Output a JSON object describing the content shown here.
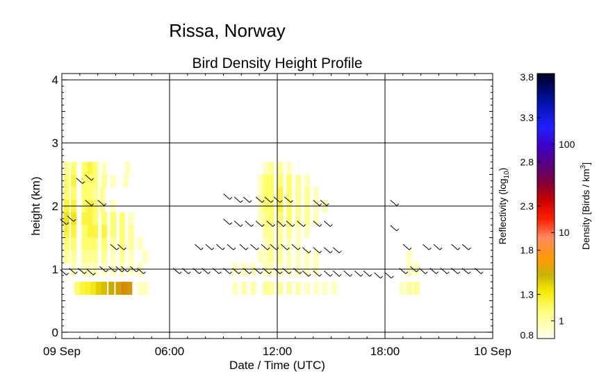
{
  "suptitle": "Rissa, Norway",
  "chart_data": {
    "type": "heatmap",
    "title": "Bird Density Height Profile",
    "xlabel": "Date / Time (UTC)",
    "ylabel": "height (km)",
    "xlim": [
      0,
      24
    ],
    "ylim": [
      -0.1,
      4.1
    ],
    "x_ticks": [
      {
        "value": 0,
        "label": "09 Sep"
      },
      {
        "value": 6,
        "label": "06:00"
      },
      {
        "value": 12,
        "label": "12:00"
      },
      {
        "value": 18,
        "label": "18:00"
      },
      {
        "value": 24,
        "label": "10 Sep"
      }
    ],
    "y_ticks": [
      {
        "value": 0,
        "label": "0"
      },
      {
        "value": 1,
        "label": "1"
      },
      {
        "value": 2,
        "label": "2"
      },
      {
        "value": 3,
        "label": "3"
      },
      {
        "value": 4,
        "label": "4"
      }
    ],
    "grid": true,
    "cells": [
      [
        0.1,
        2.5,
        1.2
      ],
      [
        0.5,
        2.5,
        1.3
      ],
      [
        1.1,
        2.5,
        1.3
      ],
      [
        1.4,
        2.5,
        1.4
      ],
      [
        1.7,
        2.5,
        1.3
      ],
      [
        2.2,
        2.5,
        1.1
      ],
      [
        3.5,
        2.5,
        1.1
      ],
      [
        0.1,
        2.3,
        1.3
      ],
      [
        0.5,
        2.3,
        1.4
      ],
      [
        1.1,
        2.3,
        1.3
      ],
      [
        1.4,
        2.3,
        1.3
      ],
      [
        1.7,
        2.3,
        1.3
      ],
      [
        2.2,
        2.3,
        1.2
      ],
      [
        2.7,
        2.3,
        1.1
      ],
      [
        3.4,
        2.3,
        1.1
      ],
      [
        0.1,
        2.1,
        1.3
      ],
      [
        0.5,
        2.1,
        1.3
      ],
      [
        1.1,
        2.1,
        1.3
      ],
      [
        1.4,
        2.1,
        1.3
      ],
      [
        1.7,
        2.1,
        1.2
      ],
      [
        2.1,
        2.1,
        1.2
      ],
      [
        0.1,
        1.9,
        1.4
      ],
      [
        0.5,
        1.9,
        1.4
      ],
      [
        1.1,
        1.9,
        1.3
      ],
      [
        1.4,
        1.9,
        1.4
      ],
      [
        1.7,
        1.9,
        1.3
      ],
      [
        2.1,
        1.9,
        1.2
      ],
      [
        2.7,
        1.9,
        1.1
      ],
      [
        0.1,
        1.7,
        1.5
      ],
      [
        0.5,
        1.7,
        1.5
      ],
      [
        1.1,
        1.7,
        1.4
      ],
      [
        1.4,
        1.7,
        1.4
      ],
      [
        1.7,
        1.7,
        1.3
      ],
      [
        2.2,
        1.7,
        1.3
      ],
      [
        2.7,
        1.7,
        1.3
      ],
      [
        3.2,
        1.7,
        1.3
      ],
      [
        3.7,
        1.7,
        1.1
      ],
      [
        0.1,
        1.5,
        1.4
      ],
      [
        0.5,
        1.5,
        1.4
      ],
      [
        1.1,
        1.5,
        1.3
      ],
      [
        1.4,
        1.5,
        1.4
      ],
      [
        1.7,
        1.5,
        1.4
      ],
      [
        2.2,
        1.5,
        1.4
      ],
      [
        2.7,
        1.5,
        1.3
      ],
      [
        3.2,
        1.5,
        1.3
      ],
      [
        3.7,
        1.5,
        1.2
      ],
      [
        0.1,
        1.3,
        1.3
      ],
      [
        0.5,
        1.3,
        1.3
      ],
      [
        1.1,
        1.3,
        1.3
      ],
      [
        1.4,
        1.3,
        1.3
      ],
      [
        1.7,
        1.3,
        1.3
      ],
      [
        2.2,
        1.3,
        1.3
      ],
      [
        2.7,
        1.3,
        1.2
      ],
      [
        3.2,
        1.3,
        1.3
      ],
      [
        3.7,
        1.3,
        1.2
      ],
      [
        4.2,
        1.3,
        1.1
      ],
      [
        0.1,
        1.1,
        1.2
      ],
      [
        0.5,
        1.1,
        1.2
      ],
      [
        1.1,
        1.1,
        1.2
      ],
      [
        1.4,
        1.1,
        1.2
      ],
      [
        1.7,
        1.1,
        1.2
      ],
      [
        2.2,
        1.1,
        1.2
      ],
      [
        2.7,
        1.1,
        1.1
      ],
      [
        3.2,
        1.1,
        1.2
      ],
      [
        3.7,
        1.1,
        1.1
      ],
      [
        4.5,
        1.1,
        1.1
      ],
      [
        0.5,
        0.9,
        1.1
      ],
      [
        1.1,
        0.9,
        1.1
      ],
      [
        1.4,
        0.9,
        1.1
      ],
      [
        1.7,
        0.9,
        1.1
      ],
      [
        2.2,
        0.9,
        1.1
      ],
      [
        2.7,
        0.9,
        1.1
      ],
      [
        3.2,
        0.9,
        1.1
      ],
      [
        3.7,
        0.9,
        1.1
      ],
      [
        4.2,
        0.9,
        1.1
      ],
      [
        0.7,
        0.6,
        1.3
      ],
      [
        1.0,
        0.6,
        1.4
      ],
      [
        1.3,
        0.6,
        1.45
      ],
      [
        1.6,
        0.6,
        1.5
      ],
      [
        1.9,
        0.6,
        1.6
      ],
      [
        2.2,
        0.6,
        1.65
      ],
      [
        2.6,
        0.6,
        1.7
      ],
      [
        3.0,
        0.6,
        1.72
      ],
      [
        3.3,
        0.6,
        1.78
      ],
      [
        3.6,
        0.6,
        1.75
      ],
      [
        4.2,
        0.6,
        1.1
      ],
      [
        4.5,
        0.6,
        1.1
      ],
      [
        11.2,
        2.5,
        1.1
      ],
      [
        11.5,
        2.5,
        1.2
      ],
      [
        12.0,
        2.5,
        1.2
      ],
      [
        12.5,
        2.5,
        1.1
      ],
      [
        10.9,
        2.3,
        1.1
      ],
      [
        11.2,
        2.3,
        1.3
      ],
      [
        11.5,
        2.3,
        1.3
      ],
      [
        12.0,
        2.3,
        1.3
      ],
      [
        12.5,
        2.3,
        1.3
      ],
      [
        13.0,
        2.3,
        1.2
      ],
      [
        13.5,
        2.3,
        1.1
      ],
      [
        10.9,
        2.1,
        1.1
      ],
      [
        11.2,
        2.1,
        1.3
      ],
      [
        11.5,
        2.1,
        1.3
      ],
      [
        12.0,
        2.1,
        1.4
      ],
      [
        12.5,
        2.1,
        1.3
      ],
      [
        13.0,
        2.1,
        1.2
      ],
      [
        13.5,
        2.1,
        1.2
      ],
      [
        14.0,
        2.1,
        1.1
      ],
      [
        10.9,
        1.9,
        1.1
      ],
      [
        11.2,
        1.9,
        1.3
      ],
      [
        11.5,
        1.9,
        1.3
      ],
      [
        12.0,
        1.9,
        1.4
      ],
      [
        12.5,
        1.9,
        1.3
      ],
      [
        13.0,
        1.9,
        1.2
      ],
      [
        13.5,
        1.9,
        1.2
      ],
      [
        14.0,
        1.9,
        1.1
      ],
      [
        14.5,
        1.9,
        1.1
      ],
      [
        10.9,
        1.7,
        1.1
      ],
      [
        11.2,
        1.7,
        1.2
      ],
      [
        11.5,
        1.7,
        1.3
      ],
      [
        12.0,
        1.7,
        1.3
      ],
      [
        12.5,
        1.7,
        1.3
      ],
      [
        13.0,
        1.7,
        1.2
      ],
      [
        13.5,
        1.7,
        1.2
      ],
      [
        14.0,
        1.7,
        1.1
      ],
      [
        11.2,
        1.5,
        1.2
      ],
      [
        11.5,
        1.5,
        1.2
      ],
      [
        12.0,
        1.5,
        1.2
      ],
      [
        12.5,
        1.5,
        1.2
      ],
      [
        13.0,
        1.5,
        1.1
      ],
      [
        13.5,
        1.5,
        1.1
      ],
      [
        11.2,
        1.3,
        1.1
      ],
      [
        11.5,
        1.3,
        1.2
      ],
      [
        12.0,
        1.3,
        1.2
      ],
      [
        12.5,
        1.3,
        1.1
      ],
      [
        13.0,
        1.3,
        1.1
      ],
      [
        10.9,
        1.1,
        1.1
      ],
      [
        11.2,
        1.1,
        1.1
      ],
      [
        11.5,
        1.1,
        1.2
      ],
      [
        12.0,
        1.1,
        1.2
      ],
      [
        12.5,
        1.1,
        1.1
      ],
      [
        13.0,
        1.1,
        1.1
      ],
      [
        13.5,
        1.1,
        1.1
      ],
      [
        14.0,
        1.1,
        1.1
      ],
      [
        9.5,
        0.9,
        1.1
      ],
      [
        10.0,
        0.9,
        1.1
      ],
      [
        10.5,
        0.9,
        1.1
      ],
      [
        11.2,
        0.9,
        1.1
      ],
      [
        11.5,
        0.9,
        1.1
      ],
      [
        12.0,
        0.9,
        1.1
      ],
      [
        12.5,
        0.9,
        1.1
      ],
      [
        13.0,
        0.9,
        1.1
      ],
      [
        13.5,
        0.9,
        1.1
      ],
      [
        14.0,
        0.9,
        1.1
      ],
      [
        9.5,
        0.6,
        1.1
      ],
      [
        10.0,
        0.6,
        1.15
      ],
      [
        10.5,
        0.6,
        1.15
      ],
      [
        11.2,
        0.6,
        1.2
      ],
      [
        11.5,
        0.6,
        1.2
      ],
      [
        12.0,
        0.6,
        1.2
      ],
      [
        12.5,
        0.6,
        1.15
      ],
      [
        13.0,
        0.6,
        1.15
      ],
      [
        13.5,
        0.6,
        1.1
      ],
      [
        14.0,
        0.6,
        1.1
      ],
      [
        14.5,
        0.6,
        1.1
      ],
      [
        15.0,
        0.6,
        1.1
      ],
      [
        19.2,
        1.1,
        1.1
      ],
      [
        19.2,
        0.9,
        1.1
      ],
      [
        19.6,
        0.9,
        1.1
      ],
      [
        19.2,
        0.6,
        1.2
      ],
      [
        19.6,
        0.6,
        1.2
      ],
      [
        18.8,
        0.6,
        1.1
      ]
    ],
    "wind_barbs": [
      [
        0.1,
        1.75
      ],
      [
        0.5,
        1.8
      ],
      [
        0.1,
        0.95
      ],
      [
        0.6,
        0.97
      ],
      [
        1.1,
        0.97
      ],
      [
        1.6,
        0.95
      ],
      [
        2.3,
        1.0
      ],
      [
        2.8,
        1.0
      ],
      [
        3.2,
        1.0
      ],
      [
        3.5,
        1.0
      ],
      [
        4.0,
        1.0
      ],
      [
        4.4,
        0.97
      ],
      [
        1.0,
        2.4
      ],
      [
        1.5,
        2.45
      ],
      [
        1.5,
        2.05
      ],
      [
        2.2,
        2.05
      ],
      [
        2.9,
        1.35
      ],
      [
        3.3,
        1.35
      ],
      [
        9.2,
        2.15
      ],
      [
        9.8,
        2.1
      ],
      [
        10.3,
        2.1
      ],
      [
        11.0,
        2.1
      ],
      [
        11.5,
        2.1
      ],
      [
        12.0,
        2.1
      ],
      [
        12.6,
        2.1
      ],
      [
        14.2,
        2.05
      ],
      [
        14.6,
        2.05
      ],
      [
        9.2,
        1.75
      ],
      [
        9.8,
        1.72
      ],
      [
        10.4,
        1.72
      ],
      [
        11.0,
        1.72
      ],
      [
        11.6,
        1.72
      ],
      [
        12.2,
        1.72
      ],
      [
        12.7,
        1.72
      ],
      [
        13.3,
        1.72
      ],
      [
        14.2,
        1.72
      ],
      [
        14.8,
        1.72
      ],
      [
        7.6,
        1.35
      ],
      [
        8.2,
        1.35
      ],
      [
        8.8,
        1.35
      ],
      [
        9.4,
        1.35
      ],
      [
        10.1,
        1.35
      ],
      [
        10.7,
        1.35
      ],
      [
        11.3,
        1.35
      ],
      [
        11.8,
        1.35
      ],
      [
        12.4,
        1.35
      ],
      [
        13.0,
        1.35
      ],
      [
        13.6,
        1.3
      ],
      [
        14.2,
        1.3
      ],
      [
        14.8,
        1.3
      ],
      [
        15.3,
        1.3
      ],
      [
        6.4,
        0.97
      ],
      [
        6.9,
        0.97
      ],
      [
        7.5,
        0.97
      ],
      [
        8.0,
        0.97
      ],
      [
        8.6,
        0.97
      ],
      [
        9.2,
        0.97
      ],
      [
        9.7,
        0.97
      ],
      [
        10.3,
        0.97
      ],
      [
        10.9,
        0.97
      ],
      [
        11.4,
        0.97
      ],
      [
        12.0,
        0.97
      ],
      [
        12.5,
        0.97
      ],
      [
        13.1,
        0.97
      ],
      [
        13.6,
        0.93
      ],
      [
        14.2,
        0.93
      ],
      [
        14.8,
        0.93
      ],
      [
        15.3,
        0.93
      ],
      [
        15.9,
        0.93
      ],
      [
        16.5,
        0.93
      ],
      [
        17.0,
        0.93
      ],
      [
        17.6,
        0.9
      ],
      [
        18.2,
        0.9
      ],
      [
        18.5,
        2.05
      ],
      [
        18.5,
        1.65
      ],
      [
        19.0,
        0.97
      ],
      [
        19.6,
        1.0
      ],
      [
        20.1,
        0.97
      ],
      [
        20.7,
        0.97
      ],
      [
        21.3,
        0.97
      ],
      [
        21.9,
        0.97
      ],
      [
        22.5,
        0.97
      ],
      [
        23.2,
        0.97
      ],
      [
        19.2,
        1.35
      ],
      [
        20.3,
        1.35
      ],
      [
        20.9,
        1.35
      ],
      [
        21.9,
        1.35
      ],
      [
        22.5,
        1.35
      ]
    ],
    "colorbar": {
      "left_label": "Reflectivity (log",
      "left_sub": "10",
      "left_tail": ")",
      "right_label": "Density [Birds / km",
      "right_sup": "3",
      "right_tail": "]",
      "range": [
        0.8,
        3.8
      ],
      "left_ticks": [
        {
          "value": 0.8,
          "label": "0.8"
        },
        {
          "value": 1.3,
          "label": "1.3"
        },
        {
          "value": 1.8,
          "label": "1.8"
        },
        {
          "value": 2.3,
          "label": "2.3"
        },
        {
          "value": 2.8,
          "label": "2.8"
        },
        {
          "value": 3.3,
          "label": "3.3"
        },
        {
          "value": 3.8,
          "label": "3.8"
        }
      ],
      "right_ticks": [
        {
          "value": 1.0,
          "label": "1"
        },
        {
          "value": 2.0,
          "label": "10"
        },
        {
          "value": 3.0,
          "label": "100"
        }
      ]
    }
  }
}
